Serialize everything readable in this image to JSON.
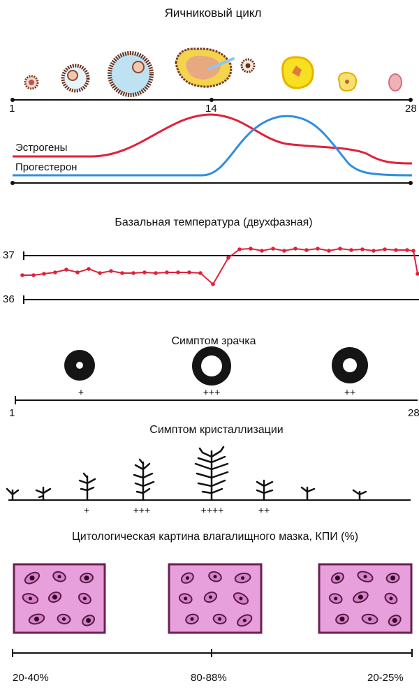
{
  "ovarian_cycle": {
    "title": "Яичниковый цикл",
    "axis_start": "1",
    "axis_mid": "14",
    "axis_end": "28"
  },
  "hormones": {
    "estrogen_label": "Эстрогены",
    "progesterone_label": "Прогестерон",
    "estrogen_color": "#e0213a",
    "progesterone_color": "#2f8fe0"
  },
  "basal_temperature": {
    "title": "Базальная температура (двухфазная)",
    "label_high": "37",
    "label_low": "36",
    "color": "#e0213a"
  },
  "pupil_symptom": {
    "title": "Симптом зрачка",
    "markers": [
      "+",
      "+++",
      "++"
    ],
    "axis_start": "1",
    "axis_end": "28"
  },
  "crystallization_symptom": {
    "title": "Симптом кристаллизации",
    "markers": [
      "+",
      "+++",
      "++++",
      "++"
    ]
  },
  "cytology": {
    "title": "Цитологическая картина влагалищного мазка, КПИ (%)",
    "values": [
      "20-40%",
      "80-88%",
      "20-25%"
    ],
    "frame_color": "#6b2050",
    "fill_color": "#e8a0dc"
  }
}
